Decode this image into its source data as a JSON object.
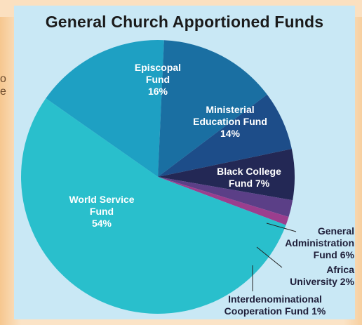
{
  "chart_data": {
    "type": "pie",
    "title": "General Church Apportioned Funds",
    "slices": [
      {
        "name": "Episcopal Fund",
        "value": 16,
        "label_lines": [
          "Episcopal",
          "Fund",
          "16%"
        ],
        "color": "#1ea0c3"
      },
      {
        "name": "Ministerial Education Fund",
        "value": 14,
        "label_lines": [
          "Ministerial",
          "Education Fund",
          "14%"
        ],
        "color": "#1a6fa2"
      },
      {
        "name": "Black College Fund",
        "value": 7,
        "label_lines": [
          "Black College",
          "Fund 7%"
        ],
        "color": "#1d4d89"
      },
      {
        "name": "General Administration Fund",
        "value": 6,
        "label_lines": [
          "General",
          "Administration",
          "Fund 6%"
        ],
        "color": "#232855"
      },
      {
        "name": "Africa University",
        "value": 2,
        "label_lines": [
          "Africa",
          "University 2%"
        ],
        "color": "#5b3f87"
      },
      {
        "name": "Interdenominational Cooperation Fund",
        "value": 1,
        "label_lines": [
          "Interdenominational",
          "Cooperation Fund 1%"
        ],
        "color": "#9b3e8e"
      },
      {
        "name": "World Service Fund",
        "value": 54,
        "label_lines": [
          "World Service",
          "Fund",
          "54%"
        ],
        "color": "#29bfcc"
      }
    ]
  },
  "edge_text": [
    "o",
    "e"
  ]
}
